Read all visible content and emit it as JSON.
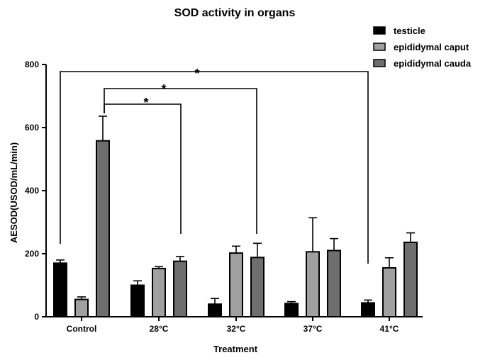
{
  "chart_data": {
    "type": "bar",
    "title": "SOD activity in organs",
    "xlabel": "Treatment",
    "ylabel": "AESOD(USOD/mL/min)",
    "ylim": [
      0,
      800
    ],
    "yticks": [
      0,
      200,
      400,
      600,
      800
    ],
    "categories": [
      "Control",
      "28°C",
      "32°C",
      "37°C",
      "41°C"
    ],
    "series": [
      {
        "name": "testicle",
        "color": "#000000",
        "values": [
          170,
          100,
          40,
          42,
          44
        ],
        "errors": [
          10,
          14,
          18,
          6,
          9
        ]
      },
      {
        "name": "epididymal caput",
        "color": "#a0a0a0",
        "values": [
          55,
          153,
          202,
          206,
          155
        ],
        "errors": [
          8,
          6,
          22,
          108,
          32
        ]
      },
      {
        "name": "epididymal cauda",
        "color": "#6e6e6e",
        "values": [
          558,
          176,
          188,
          210,
          236
        ],
        "errors": [
          78,
          15,
          45,
          38,
          30
        ]
      }
    ],
    "significance": [
      {
        "from": "Control",
        "to": "28°C",
        "label": "*"
      },
      {
        "from": "Control",
        "to": "32°C",
        "label": "*"
      },
      {
        "from": "Control",
        "to": "41°C",
        "label": "*"
      }
    ]
  }
}
